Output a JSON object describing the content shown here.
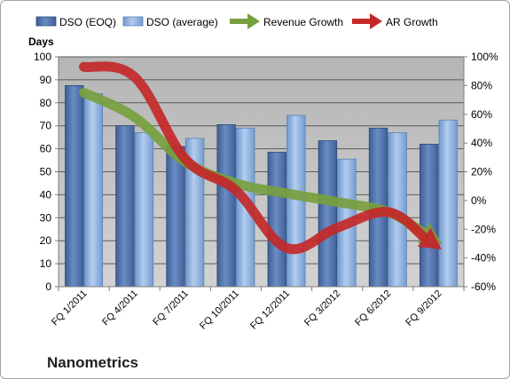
{
  "company_label": "Nanometrics",
  "chart_data": {
    "type": "bar",
    "title": "",
    "categories": [
      "FQ 1/2011",
      "FQ 4/2011",
      "FQ 7/2011",
      "FQ 10/2011",
      "FQ 12/2011",
      "FQ 3/2012",
      "FQ 6/2012",
      "FQ 9/2012"
    ],
    "series": [
      {
        "name": "DSO (EOQ)",
        "kind": "bar",
        "axis": "left",
        "color": "#4f6fa8",
        "values": [
          87.5,
          70,
          61,
          70.5,
          58.5,
          63.5,
          69,
          62
        ]
      },
      {
        "name": "DSO (average)",
        "kind": "bar",
        "axis": "left",
        "color": "#8eb4e3",
        "values": [
          84,
          67,
          64.5,
          69,
          74.5,
          55.5,
          67,
          72.5
        ]
      },
      {
        "name": "Revenue Growth",
        "kind": "arrow-line",
        "axis": "right",
        "color": "#77a03e",
        "values": [
          0.75,
          0.58,
          0.27,
          0.12,
          0.05,
          -0.01,
          -0.08,
          -0.28
        ]
      },
      {
        "name": "AR Growth",
        "kind": "arrow-line",
        "axis": "right",
        "color": "#c42828",
        "values": [
          0.93,
          0.86,
          0.29,
          0.07,
          -0.33,
          -0.19,
          -0.08,
          -0.32
        ]
      }
    ],
    "ylabel": "Days",
    "ylim": [
      0,
      100
    ],
    "yticks": [
      0,
      10,
      20,
      30,
      40,
      50,
      60,
      70,
      80,
      90,
      100
    ],
    "y2lim": [
      -0.6,
      1.0
    ],
    "y2ticks": [
      "-60%",
      "-40%",
      "-20%",
      "0%",
      "20%",
      "40%",
      "60%",
      "80%",
      "100%"
    ],
    "grid": true,
    "legend_position": "top"
  }
}
